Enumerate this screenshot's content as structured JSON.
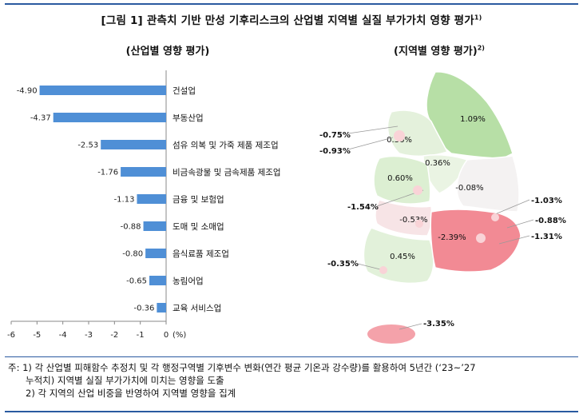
{
  "figure": {
    "title": "[그림 1] 관측치 기반 만성 기후리스크의 산업별 지역별 실질 부가가치 영향 평가",
    "title_sup": "1)",
    "left_title": "(산업별 영향 평가)",
    "right_title": "(지역별 영향 평가)",
    "right_title_sup": "2)"
  },
  "chart_data": {
    "type": "bar",
    "orientation": "horizontal",
    "categories": [
      "건설업",
      "부동산업",
      "섬유 의복 및 가죽 제품 제조업",
      "비금속광물 및 금속제품 제조업",
      "금융 및 보험업",
      "도매 및 소매업",
      "음식료품 제조업",
      "농림어업",
      "교육 서비스업"
    ],
    "values": [
      -4.9,
      -4.37,
      -2.53,
      -1.76,
      -1.13,
      -0.88,
      -0.8,
      -0.65,
      -0.36
    ],
    "value_labels": [
      "-4.90",
      "-4.37",
      "-2.53",
      "-1.76",
      "-1.13",
      "-0.88",
      "-0.80",
      "-0.65",
      "-0.36"
    ],
    "xlim": [
      -6,
      0
    ],
    "xticks": [
      "-6",
      "-5",
      "-4",
      "-3",
      "-2",
      "-1",
      "0"
    ],
    "xunit": "(%)",
    "bar_color": "#4f8fd6",
    "grid": false
  },
  "map": {
    "regions": [
      {
        "label": "1.09%",
        "color": "#b7dfa6"
      },
      {
        "label": "0.36%",
        "color": "#e4f1dc"
      },
      {
        "label": "0.36%",
        "color": "#eaf4e3"
      },
      {
        "label": "0.60%",
        "color": "#dcefd2"
      },
      {
        "label": "-0.08%",
        "color": "#f4f2f2"
      },
      {
        "label": "-0.53%",
        "color": "#f7e4e6"
      },
      {
        "label": "0.45%",
        "color": "#e2f1da"
      },
      {
        "label": "-2.39%",
        "color": "#f28a94"
      }
    ],
    "callouts": [
      "-0.75%",
      "-0.93%",
      "-1.54%",
      "-1.03%",
      "-0.88%",
      "-1.31%",
      "-0.35%",
      "-3.35%"
    ],
    "jeju_color": "#f4a2aa",
    "negative_small_color": "#f9d3d7",
    "leader_color": "#999999"
  },
  "notes": [
    "주: 1) 각 산업별 피해함수 추정치 및 각 행정구역별 기후변수 변화(연간 평균 기온과 강수량)를 활용하여 5년간 (‘23~’27",
    "누적치) 지역별 실질 부가가치에 미치는 영향을 도출",
    "2) 각 지역의 산업 비중을 반영하여 지역별 영향을 집계"
  ]
}
